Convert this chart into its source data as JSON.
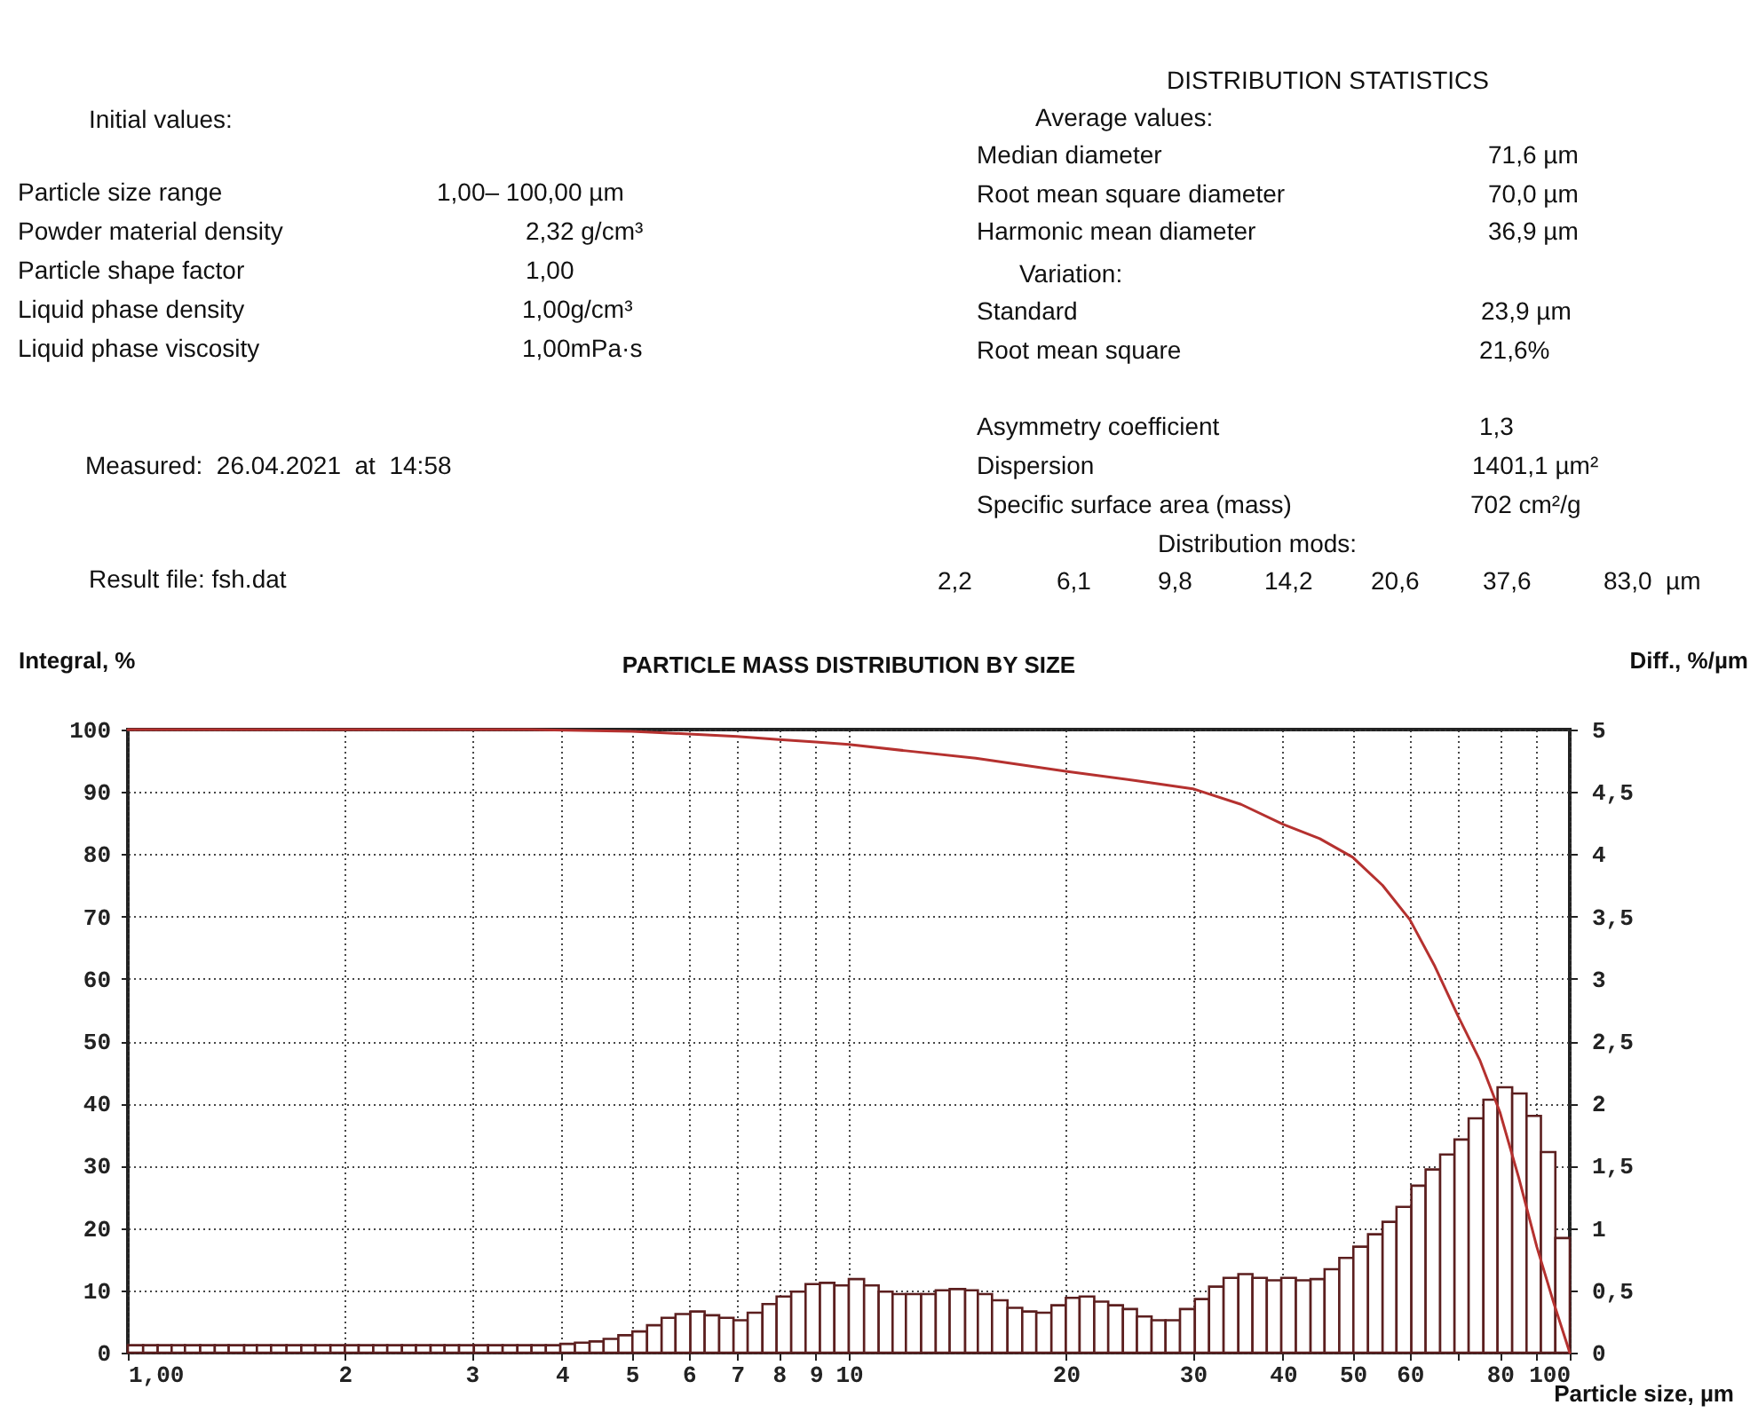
{
  "chart_data": {
    "type": "histogram",
    "title": "PARTICLE MASS DISTRIBUTION BY SIZE",
    "xlabel": "Particle size, µm",
    "ylabel": "Integral, %",
    "y2label": "Diff., %/µm",
    "log": "x",
    "grid": true,
    "xlim": [
      1,
      100
    ],
    "xticks": [
      {
        "value": 1,
        "label": "1,00"
      },
      2,
      3,
      4,
      5,
      6,
      7,
      8,
      9,
      10,
      20,
      30,
      40,
      50,
      60,
      {
        "value": 70,
        "label": null
      },
      80,
      {
        "value": 90,
        "label": null
      },
      100
    ],
    "ylim": [
      0,
      100
    ],
    "yticks": [
      0,
      10,
      20,
      30,
      40,
      50,
      60,
      70,
      80,
      90,
      100
    ],
    "y2lim": [
      0,
      5
    ],
    "y2ticks": [
      0,
      {
        "value": 0.5,
        "label": "0,5"
      },
      1,
      {
        "value": 1.5,
        "label": "1,5"
      },
      2,
      {
        "value": 2.5,
        "label": "2,5"
      },
      3,
      {
        "value": 3.5,
        "label": "3,5"
      },
      4,
      {
        "value": 4.5,
        "label": "4,5"
      },
      5
    ],
    "bins": [
      1.0,
      1.05,
      1.1,
      1.15,
      1.2,
      1.26,
      1.32,
      1.38,
      1.45,
      1.51,
      1.58,
      1.66,
      1.74,
      1.82,
      1.91,
      2.0,
      2.09,
      2.19,
      2.29,
      2.4,
      2.51,
      2.63,
      2.75,
      2.88,
      3.02,
      3.16,
      3.31,
      3.47,
      3.63,
      3.8,
      3.98,
      4.17,
      4.37,
      4.57,
      4.79,
      5.01,
      5.25,
      5.5,
      5.75,
      6.03,
      6.31,
      6.61,
      6.92,
      7.24,
      7.59,
      7.94,
      8.32,
      8.71,
      9.12,
      9.55,
      10.0,
      10.5,
      11.0,
      11.5,
      12.0,
      12.6,
      13.2,
      13.8,
      14.5,
      15.1,
      15.8,
      16.6,
      17.4,
      18.2,
      19.1,
      20.0,
      20.9,
      21.9,
      22.9,
      24.0,
      25.1,
      26.3,
      27.5,
      28.8,
      30.2,
      31.6,
      33.1,
      34.7,
      36.3,
      38.0,
      39.8,
      41.7,
      43.7,
      45.7,
      47.9,
      50.1,
      52.5,
      55.0,
      57.5,
      60.3,
      63.1,
      66.1,
      69.2,
      72.4,
      75.9,
      79.4,
      83.2,
      87.1,
      91.2,
      95.5,
      100
    ],
    "series": [
      {
        "axis": "y2",
        "color": "#5c1f1f",
        "values": [
          0.06,
          0.06,
          0.06,
          0.06,
          0.06,
          0.06,
          0.06,
          0.06,
          0.06,
          0.06,
          0.06,
          0.06,
          0.06,
          0.06,
          0.06,
          0.06,
          0.06,
          0.06,
          0.06,
          0.06,
          0.06,
          0.06,
          0.06,
          0.06,
          0.06,
          0.06,
          0.06,
          0.06,
          0.06,
          0.06,
          0.07,
          0.08,
          0.09,
          0.11,
          0.14,
          0.17,
          0.22,
          0.28,
          0.31,
          0.33,
          0.3,
          0.28,
          0.26,
          0.32,
          0.39,
          0.45,
          0.49,
          0.55,
          0.56,
          0.54,
          0.59,
          0.54,
          0.49,
          0.47,
          0.47,
          0.47,
          0.5,
          0.51,
          0.5,
          0.47,
          0.42,
          0.36,
          0.33,
          0.32,
          0.38,
          0.44,
          0.45,
          0.41,
          0.38,
          0.35,
          0.29,
          0.26,
          0.26,
          0.35,
          0.43,
          0.53,
          0.6,
          0.63,
          0.6,
          0.58,
          0.6,
          0.58,
          0.59,
          0.67,
          0.76,
          0.85,
          0.95,
          1.05,
          1.17,
          1.34,
          1.47,
          1.59,
          1.71,
          1.88,
          2.03,
          2.13,
          2.08,
          1.9,
          1.61,
          0.92
        ]
      },
      {
        "type": "line",
        "color": "#b5312f",
        "x": [
          1,
          3.6,
          5,
          6,
          7,
          8,
          9,
          10,
          12,
          15,
          20,
          25,
          30,
          35,
          40,
          45,
          50,
          55,
          60,
          65,
          70,
          75,
          80,
          85,
          90,
          95,
          100
        ],
        "values": [
          100,
          100,
          99.7,
          99.3,
          98.9,
          98.4,
          98,
          97.6,
          96.6,
          95.4,
          93.3,
          91.8,
          90.5,
          88,
          84.8,
          82.5,
          79.5,
          75,
          69.5,
          62,
          54,
          47,
          38.6,
          28,
          17,
          8,
          0
        ]
      }
    ],
    "annotations": [
      "Initial values:",
      "Particle size range",
      "1,00– 100,00 µm",
      "Powder material density",
      "2,32 g/cm³",
      "Particle shape factor",
      "1,00",
      "Liquid phase density",
      "1,00g/cm³",
      "Liquid phase viscosity",
      "1,00mPa·s",
      "Measured:  26.04.2021  at  14:58",
      "Result file: fsh.dat",
      "DISTRIBUTION STATISTICS",
      "Average values:",
      "Median diameter",
      "71,6 µm",
      "Root mean square diameter",
      "70,0 µm",
      "Harmonic mean diameter",
      "36,9 µm",
      "Variation:",
      "Standard",
      "23,9 µm",
      "Root mean square",
      "21,6%",
      "Asymmetry coefficient",
      "1,3",
      "Dispersion",
      "1401,1 µm²",
      "Specific surface area (mass)",
      "702 cm²/g",
      "Distribution mods:",
      "2,2",
      "6,1",
      "9,8",
      "14,2",
      "20,6",
      "37,6",
      "83,0  µm"
    ]
  }
}
